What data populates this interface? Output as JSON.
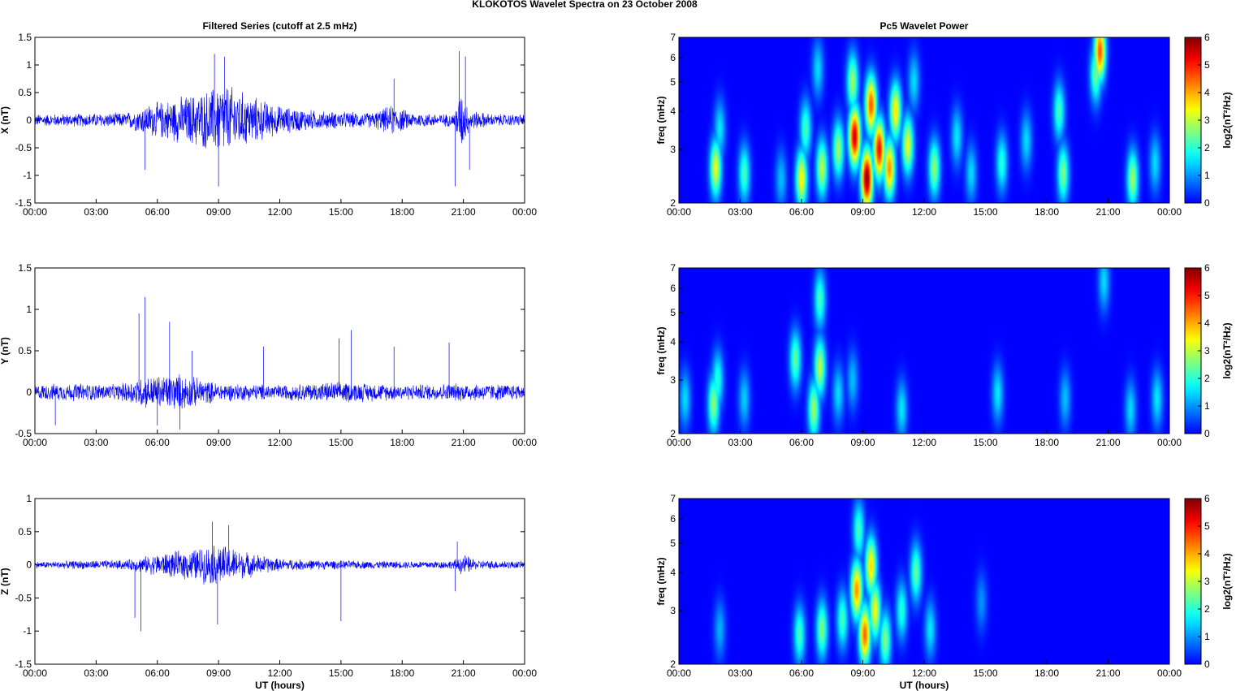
{
  "figure_title": "KLOKOTOS Wavelet Spectra on 23 October   2008",
  "colors": {
    "trace": "#0000ff",
    "background": "#ffffff",
    "spectrogram_floor": "#00008f"
  },
  "chart_data": [
    {
      "type": "line",
      "title": "Filtered Series (cutoff at 2.5 mHz)",
      "xlabel": "",
      "ylabel": "X (nT)",
      "xticks": [
        "00:00",
        "03:00",
        "06:00",
        "09:00",
        "12:00",
        "15:00",
        "18:00",
        "21:00",
        "00:00"
      ],
      "yticks": [
        "-1.5",
        "-1",
        "-0.5",
        "0",
        "0.5",
        "1",
        "1.5"
      ],
      "ylim": [
        -1.5,
        1.5
      ],
      "xlim_hours": [
        0,
        24
      ],
      "envelope": [
        {
          "t": 0,
          "amp": 0.12
        },
        {
          "t": 2.0,
          "amp": 0.13
        },
        {
          "t": 4.5,
          "amp": 0.15
        },
        {
          "t": 5.6,
          "amp": 0.32
        },
        {
          "t": 7.0,
          "amp": 0.45
        },
        {
          "t": 8.5,
          "amp": 0.6
        },
        {
          "t": 9.2,
          "amp": 0.75
        },
        {
          "t": 10.5,
          "amp": 0.5
        },
        {
          "t": 12.0,
          "amp": 0.28
        },
        {
          "t": 14.0,
          "amp": 0.18
        },
        {
          "t": 16.5,
          "amp": 0.15
        },
        {
          "t": 17.5,
          "amp": 0.3
        },
        {
          "t": 18.5,
          "amp": 0.15
        },
        {
          "t": 20.5,
          "amp": 0.12
        },
        {
          "t": 20.9,
          "amp": 0.6
        },
        {
          "t": 21.3,
          "amp": 0.2
        },
        {
          "t": 22.5,
          "amp": 0.12
        },
        {
          "t": 24,
          "amp": 0.12
        }
      ],
      "spikes": [
        {
          "t": 5.4,
          "y": -0.9
        },
        {
          "t": 8.8,
          "y": 1.2
        },
        {
          "t": 9.0,
          "y": -1.2
        },
        {
          "t": 9.3,
          "y": 1.15
        },
        {
          "t": 17.6,
          "y": 0.75
        },
        {
          "t": 20.6,
          "y": -1.2
        },
        {
          "t": 21.1,
          "y": 1.15
        },
        {
          "t": 20.8,
          "y": 1.25
        },
        {
          "t": 21.3,
          "y": -0.9
        }
      ]
    },
    {
      "type": "line",
      "title": "",
      "xlabel": "",
      "ylabel": "Y (nT)",
      "xticks": [
        "00:00",
        "03:00",
        "06:00",
        "09:00",
        "12:00",
        "15:00",
        "18:00",
        "21:00",
        "00:00"
      ],
      "yticks": [
        "-0.5",
        "0",
        "0.5",
        "1",
        "1.5"
      ],
      "ylim": [
        -0.5,
        1.5
      ],
      "xlim_hours": [
        0,
        24
      ],
      "envelope": [
        {
          "t": 0,
          "amp": 0.1
        },
        {
          "t": 2.0,
          "amp": 0.12
        },
        {
          "t": 4.0,
          "amp": 0.1
        },
        {
          "t": 5.2,
          "amp": 0.2
        },
        {
          "t": 7.0,
          "amp": 0.25
        },
        {
          "t": 9.0,
          "amp": 0.12
        },
        {
          "t": 12.0,
          "amp": 0.1
        },
        {
          "t": 15.0,
          "amp": 0.14
        },
        {
          "t": 18.0,
          "amp": 0.1
        },
        {
          "t": 21.0,
          "amp": 0.12
        },
        {
          "t": 24,
          "amp": 0.1
        }
      ],
      "spikes": [
        {
          "t": 5.1,
          "y": 0.95
        },
        {
          "t": 5.4,
          "y": 1.15
        },
        {
          "t": 6.6,
          "y": 0.85
        },
        {
          "t": 7.1,
          "y": -0.45
        },
        {
          "t": 6.0,
          "y": -0.4
        },
        {
          "t": 7.7,
          "y": 0.5
        },
        {
          "t": 11.2,
          "y": 0.55
        },
        {
          "t": 15.5,
          "y": 0.75
        },
        {
          "t": 14.9,
          "y": 0.65
        },
        {
          "t": 17.6,
          "y": 0.55
        },
        {
          "t": 20.3,
          "y": 0.6
        },
        {
          "t": 1.0,
          "y": -0.4
        }
      ]
    },
    {
      "type": "line",
      "title": "",
      "xlabel": "UT (hours)",
      "ylabel": "Z (nT)",
      "xticks": [
        "00:00",
        "03:00",
        "06:00",
        "09:00",
        "12:00",
        "15:00",
        "18:00",
        "21:00",
        "00:00"
      ],
      "yticks": [
        "-1.5",
        "-1",
        "-0.5",
        "0",
        "0.5",
        "1"
      ],
      "ylim": [
        -1.5,
        1
      ],
      "xlim_hours": [
        0,
        24
      ],
      "envelope": [
        {
          "t": 0,
          "amp": 0.05
        },
        {
          "t": 2.0,
          "amp": 0.07
        },
        {
          "t": 4.5,
          "amp": 0.08
        },
        {
          "t": 6.0,
          "amp": 0.18
        },
        {
          "t": 7.5,
          "amp": 0.25
        },
        {
          "t": 9.0,
          "amp": 0.35
        },
        {
          "t": 10.5,
          "amp": 0.2
        },
        {
          "t": 12.0,
          "amp": 0.1
        },
        {
          "t": 15.0,
          "amp": 0.07
        },
        {
          "t": 18.0,
          "amp": 0.06
        },
        {
          "t": 20.5,
          "amp": 0.07
        },
        {
          "t": 21.0,
          "amp": 0.18
        },
        {
          "t": 21.6,
          "amp": 0.08
        },
        {
          "t": 24,
          "amp": 0.06
        }
      ],
      "spikes": [
        {
          "t": 4.9,
          "y": -0.8
        },
        {
          "t": 5.2,
          "y": -1.0
        },
        {
          "t": 8.7,
          "y": 0.65
        },
        {
          "t": 8.95,
          "y": -0.9
        },
        {
          "t": 9.5,
          "y": 0.6
        },
        {
          "t": 15.0,
          "y": -0.85
        },
        {
          "t": 20.6,
          "y": -0.4
        },
        {
          "t": 20.7,
          "y": 0.35
        }
      ]
    },
    {
      "type": "heatmap",
      "title": "Pc5 Wavelet Power",
      "xlabel": "",
      "ylabel": "freq (mHz)",
      "colorbar_label": "log2(nT²/Hz)",
      "colorbar_ticks": [
        "0",
        "1",
        "2",
        "3",
        "4",
        "5",
        "6"
      ],
      "zlim": [
        0,
        6
      ],
      "ylim_mhz": [
        2,
        7
      ],
      "yscale": "log",
      "yticks": [
        "2",
        "3",
        "4",
        "5",
        "6",
        "7"
      ],
      "xticks": [
        "00:00",
        "03:00",
        "06:00",
        "09:00",
        "12:00",
        "15:00",
        "18:00",
        "21:00",
        "00:00"
      ],
      "blobs": [
        {
          "t": 1.8,
          "f": 2.6,
          "p": 3.3
        },
        {
          "t": 2.0,
          "f": 3.5,
          "p": 1.6
        },
        {
          "t": 3.2,
          "f": 2.5,
          "p": 2.2
        },
        {
          "t": 5.0,
          "f": 2.4,
          "p": 1.3
        },
        {
          "t": 6.0,
          "f": 2.4,
          "p": 3.5
        },
        {
          "t": 6.2,
          "f": 3.5,
          "p": 2.2
        },
        {
          "t": 7.0,
          "f": 2.6,
          "p": 3.0
        },
        {
          "t": 6.8,
          "f": 5.5,
          "p": 1.5
        },
        {
          "t": 7.8,
          "f": 3.0,
          "p": 2.8
        },
        {
          "t": 8.6,
          "f": 3.3,
          "p": 5.5
        },
        {
          "t": 8.5,
          "f": 5.0,
          "p": 2.8
        },
        {
          "t": 9.2,
          "f": 2.4,
          "p": 6.0
        },
        {
          "t": 9.4,
          "f": 4.2,
          "p": 4.6
        },
        {
          "t": 9.8,
          "f": 3.0,
          "p": 5.2
        },
        {
          "t": 10.3,
          "f": 2.6,
          "p": 4.2
        },
        {
          "t": 10.6,
          "f": 4.0,
          "p": 3.6
        },
        {
          "t": 11.2,
          "f": 3.1,
          "p": 3.3
        },
        {
          "t": 11.5,
          "f": 5.0,
          "p": 1.5
        },
        {
          "t": 12.5,
          "f": 2.6,
          "p": 2.7
        },
        {
          "t": 13.6,
          "f": 3.3,
          "p": 1.6
        },
        {
          "t": 14.3,
          "f": 2.5,
          "p": 1.5
        },
        {
          "t": 15.8,
          "f": 2.7,
          "p": 2.0
        },
        {
          "t": 17.0,
          "f": 3.2,
          "p": 1.5
        },
        {
          "t": 18.8,
          "f": 2.5,
          "p": 2.6
        },
        {
          "t": 18.6,
          "f": 4.0,
          "p": 2.2
        },
        {
          "t": 20.6,
          "f": 6.3,
          "p": 4.6
        },
        {
          "t": 20.4,
          "f": 5.3,
          "p": 2.5
        },
        {
          "t": 22.2,
          "f": 2.4,
          "p": 2.8
        },
        {
          "t": 23.3,
          "f": 2.7,
          "p": 1.5
        }
      ]
    },
    {
      "type": "heatmap",
      "title": "",
      "xlabel": "",
      "ylabel": "freq (mHz)",
      "colorbar_label": "log2(nT²/Hz)",
      "colorbar_ticks": [
        "0",
        "1",
        "2",
        "3",
        "4",
        "5",
        "6"
      ],
      "zlim": [
        0,
        6
      ],
      "ylim_mhz": [
        2,
        7
      ],
      "yscale": "log",
      "yticks": [
        "2",
        "3",
        "4",
        "5",
        "6",
        "7"
      ],
      "xticks": [
        "00:00",
        "03:00",
        "06:00",
        "09:00",
        "12:00",
        "15:00",
        "18:00",
        "21:00",
        "00:00"
      ],
      "blobs": [
        {
          "t": 0.3,
          "f": 2.6,
          "p": 1.5
        },
        {
          "t": 1.7,
          "f": 2.5,
          "p": 2.7
        },
        {
          "t": 1.9,
          "f": 3.0,
          "p": 2.0
        },
        {
          "t": 3.2,
          "f": 2.6,
          "p": 1.4
        },
        {
          "t": 5.7,
          "f": 3.5,
          "p": 2.4
        },
        {
          "t": 6.6,
          "f": 2.4,
          "p": 2.8
        },
        {
          "t": 6.9,
          "f": 3.3,
          "p": 3.0
        },
        {
          "t": 6.9,
          "f": 5.5,
          "p": 2.2
        },
        {
          "t": 7.8,
          "f": 2.7,
          "p": 1.5
        },
        {
          "t": 8.5,
          "f": 3.0,
          "p": 1.3
        },
        {
          "t": 10.9,
          "f": 2.4,
          "p": 1.6
        },
        {
          "t": 15.6,
          "f": 2.7,
          "p": 1.6
        },
        {
          "t": 18.9,
          "f": 2.6,
          "p": 1.3
        },
        {
          "t": 20.8,
          "f": 6.3,
          "p": 1.5
        },
        {
          "t": 22.1,
          "f": 2.4,
          "p": 1.5
        },
        {
          "t": 23.4,
          "f": 2.6,
          "p": 1.6
        }
      ]
    },
    {
      "type": "heatmap",
      "title": "",
      "xlabel": "UT (hours)",
      "ylabel": "freq (mHz)",
      "colorbar_label": "log2(nT²/Hz)",
      "colorbar_ticks": [
        "0",
        "1",
        "2",
        "3",
        "4",
        "5",
        "6"
      ],
      "zlim": [
        0,
        6
      ],
      "ylim_mhz": [
        2,
        7
      ],
      "yscale": "log",
      "yticks": [
        "2",
        "3",
        "4",
        "5",
        "6",
        "7"
      ],
      "xticks": [
        "00:00",
        "03:00",
        "06:00",
        "09:00",
        "12:00",
        "15:00",
        "18:00",
        "21:00",
        "00:00"
      ],
      "blobs": [
        {
          "t": 2.0,
          "f": 2.6,
          "p": 1.2
        },
        {
          "t": 5.9,
          "f": 2.5,
          "p": 2.2
        },
        {
          "t": 7.0,
          "f": 2.6,
          "p": 2.6
        },
        {
          "t": 8.0,
          "f": 2.8,
          "p": 2.2
        },
        {
          "t": 8.7,
          "f": 3.5,
          "p": 4.2
        },
        {
          "t": 8.8,
          "f": 5.5,
          "p": 2.2
        },
        {
          "t": 9.1,
          "f": 2.5,
          "p": 4.5
        },
        {
          "t": 9.4,
          "f": 4.2,
          "p": 3.7
        },
        {
          "t": 9.6,
          "f": 3.0,
          "p": 3.4
        },
        {
          "t": 10.1,
          "f": 2.4,
          "p": 2.6
        },
        {
          "t": 10.9,
          "f": 3.0,
          "p": 2.0
        },
        {
          "t": 11.6,
          "f": 4.0,
          "p": 2.4
        },
        {
          "t": 12.3,
          "f": 2.6,
          "p": 1.6
        },
        {
          "t": 14.8,
          "f": 3.2,
          "p": 1.0
        }
      ]
    }
  ]
}
